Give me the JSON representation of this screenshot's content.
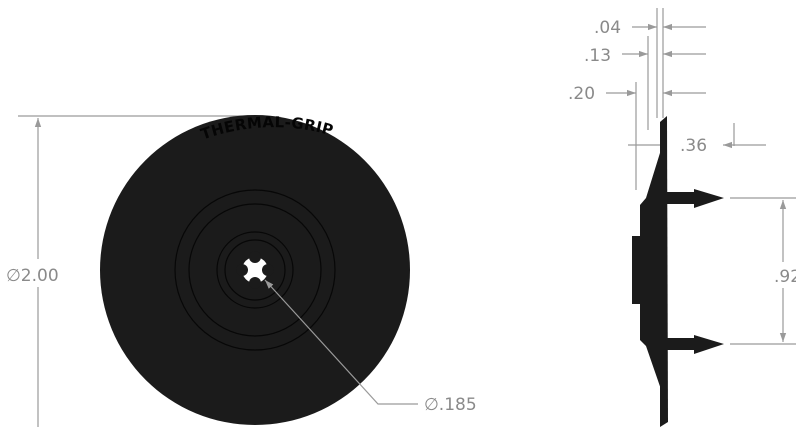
{
  "front_view": {
    "brand_text": "THERMAL-GRIP",
    "diameter_label": "∅2.00",
    "hole_label": "∅.185"
  },
  "side_view": {
    "dims": {
      "d1": ".04",
      "d2": ".13",
      "d3": ".20",
      "d4": ".36",
      "spacing": ".92"
    }
  },
  "colors": {
    "part": "#1b1b1b",
    "dimension": "#9a9a9a"
  }
}
